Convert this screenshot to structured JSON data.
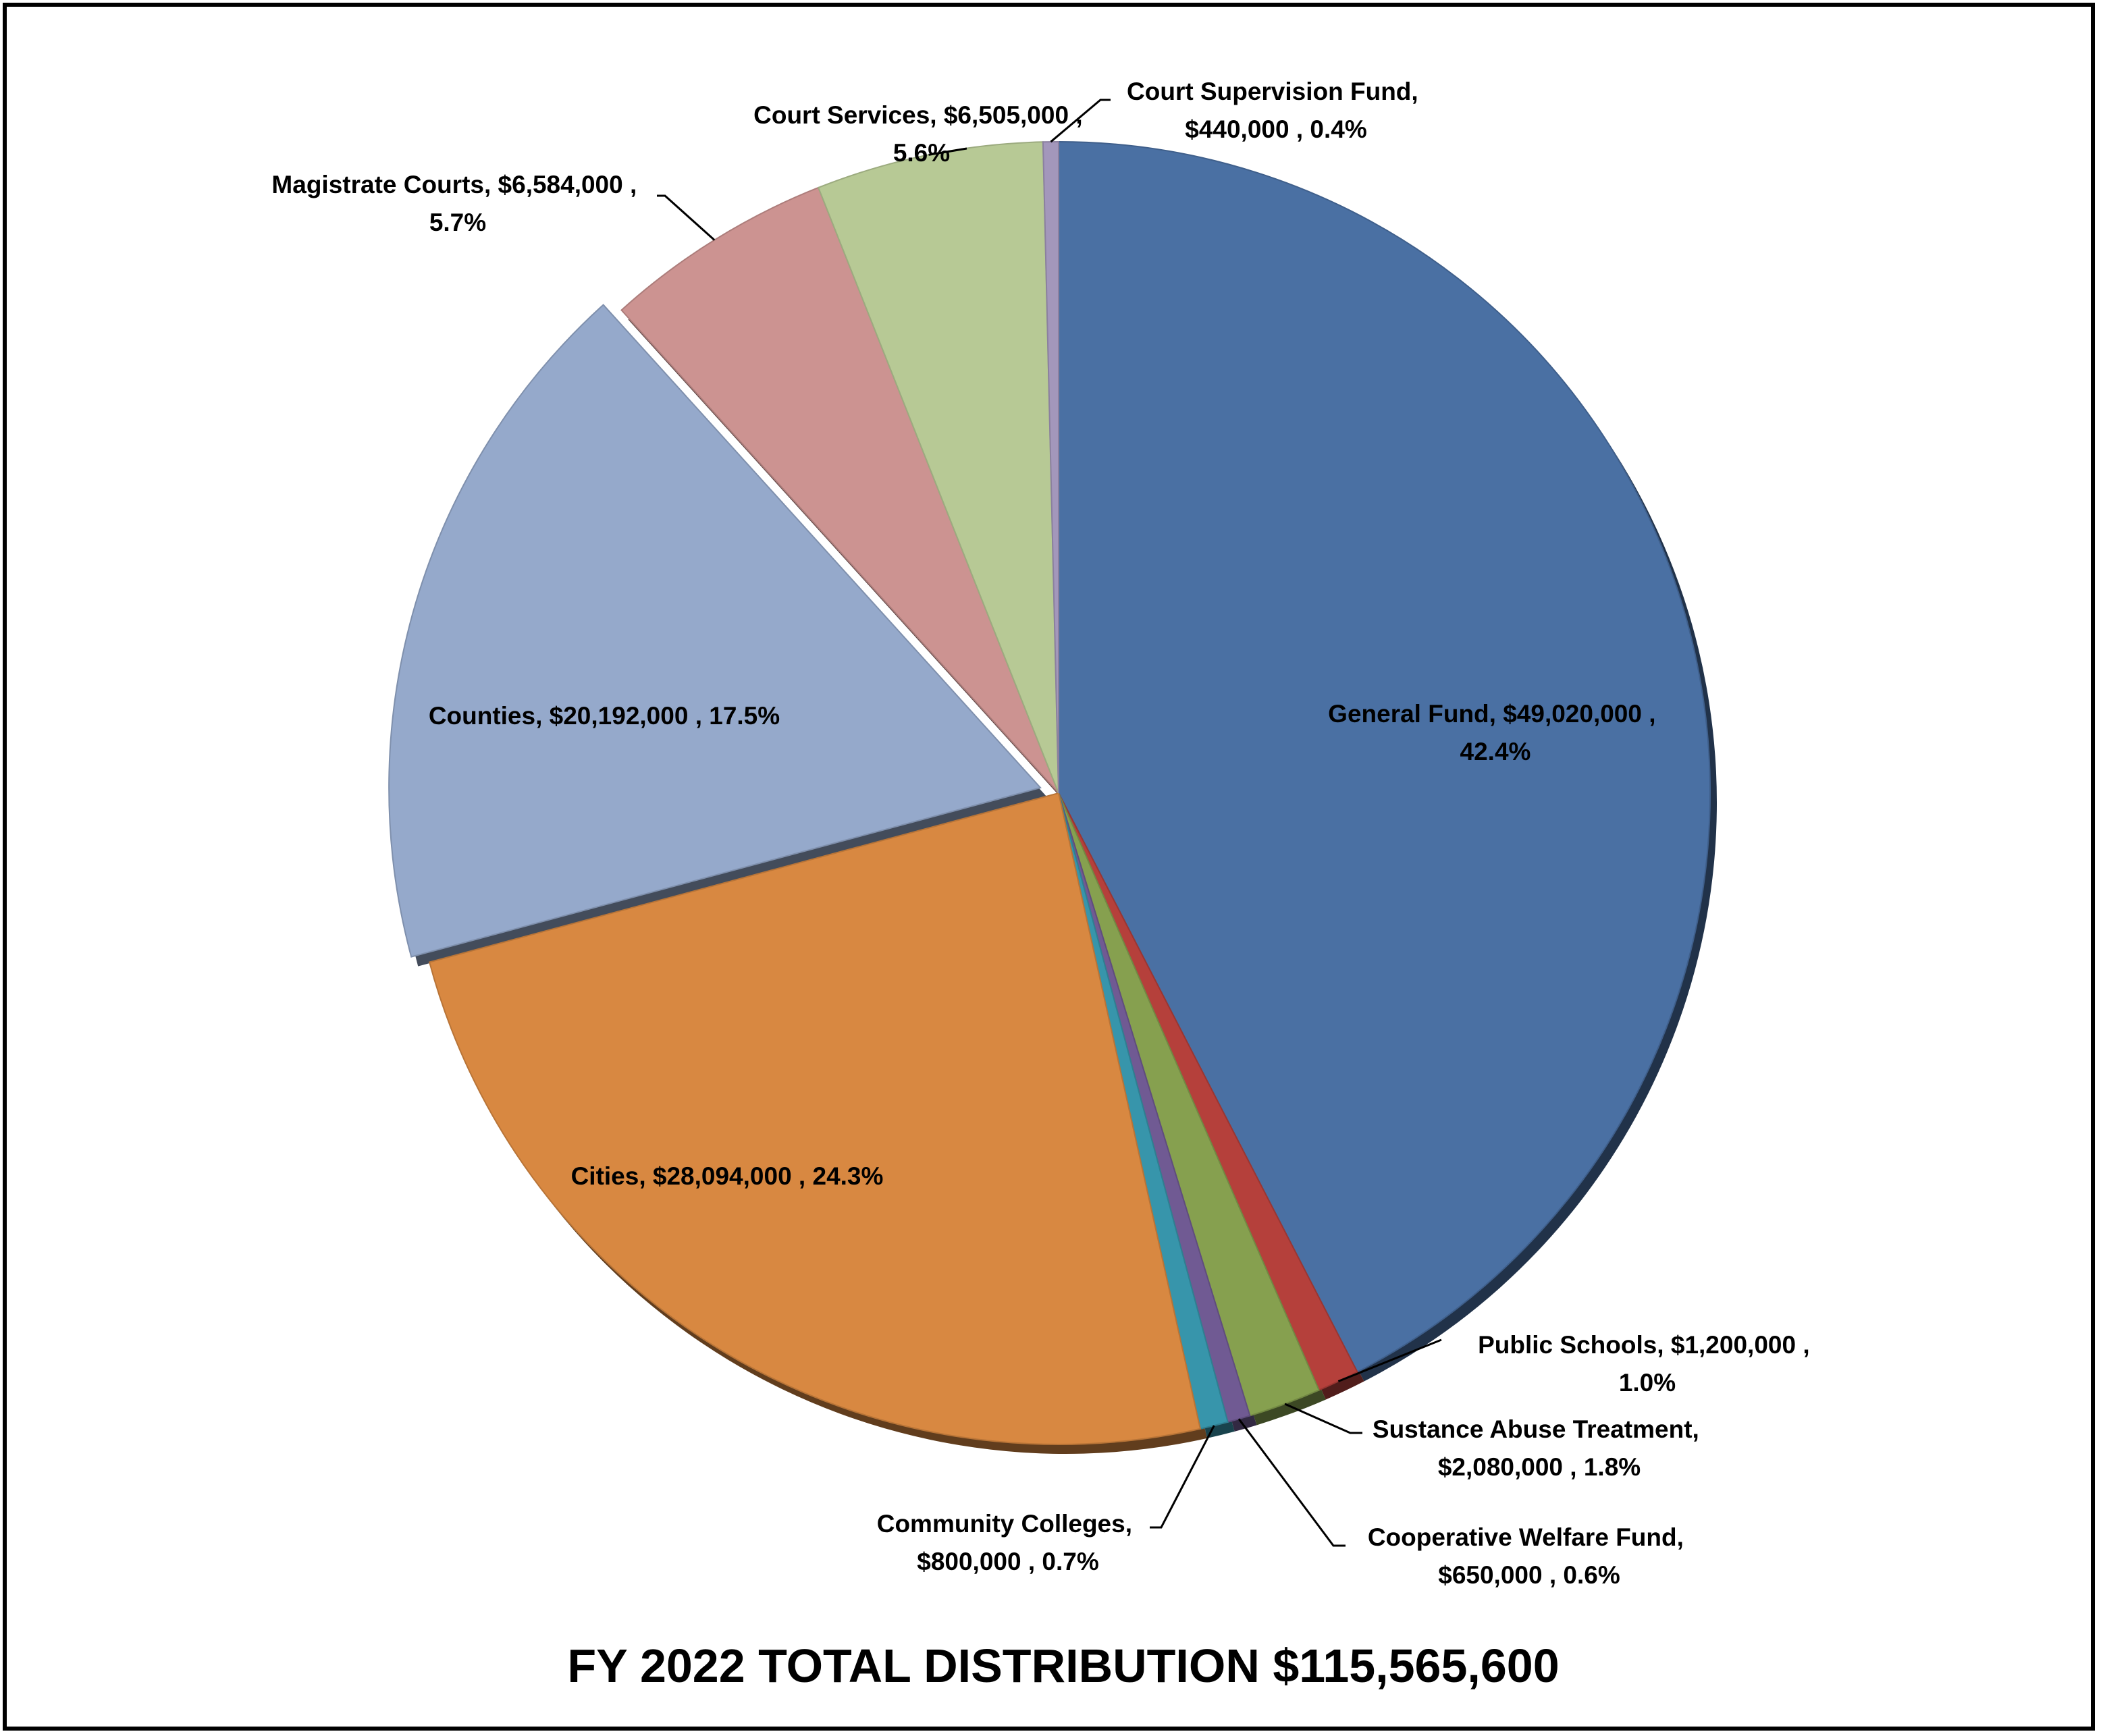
{
  "chart_data": {
    "type": "pie",
    "title": "FY 2022 TOTAL DISTRIBUTION $115,565,600",
    "slices": [
      {
        "name": "General  Fund",
        "amount": "$49,020,000",
        "value": 49020000,
        "percent": "42.4%",
        "color": "#4A70A3"
      },
      {
        "name": "Public Schools",
        "amount": "$1,200,000",
        "value": 1200000,
        "percent": "1.0%",
        "color": "#B5403B"
      },
      {
        "name": "Sustance Abuse Treatment",
        "amount": "$2,080,000",
        "value": 2080000,
        "percent": "1.8%",
        "color": "#86A04F"
      },
      {
        "name": "Cooperative Welfare Fund",
        "amount": "$650,000",
        "value": 650000,
        "percent": "0.6%",
        "color": "#705A93"
      },
      {
        "name": "Community Colleges",
        "amount": "$800,000",
        "value": 800000,
        "percent": "0.7%",
        "color": "#3795AB"
      },
      {
        "name": "Cities",
        "amount": "$28,094,000",
        "value": 28094000,
        "percent": "24.3%",
        "color": "#D88841"
      },
      {
        "name": "Counties",
        "amount": "$20,192,000",
        "value": 20192000,
        "percent": "17.5%",
        "color": "#95A9CB"
      },
      {
        "name": "Magistrate Courts",
        "amount": "$6,584,000",
        "value": 6584000,
        "percent": "5.7%",
        "color": "#CC9391"
      },
      {
        "name": "Court Services",
        "amount": "$6,505,000",
        "value": 6505000,
        "percent": "5.6%",
        "color": "#B7C995"
      },
      {
        "name": "Court Supervision Fund",
        "amount": "$440,000",
        "value": 440000,
        "percent": "0.4%",
        "color": "#A397BB"
      }
    ],
    "labels": [
      {
        "line1": "General  Fund,  $49,020,000 ,",
        "line2": "42.4%"
      },
      {
        "line1": "Public Schools,  $1,200,000 ,",
        "line2": "1.0%"
      },
      {
        "line1": "Sustance Abuse Treatment,",
        "line2": "$2,080,000 , 1.8%"
      },
      {
        "line1": "Cooperative Welfare Fund,",
        "line2": "$650,000 , 0.6%"
      },
      {
        "line1": "Community Colleges,",
        "line2": "$800,000 , 0.7%"
      },
      {
        "line1": "Cities,  $28,094,000 , 24.3%",
        "line2": ""
      },
      {
        "line1": "Counties,  $20,192,000 , 17.5%",
        "line2": ""
      },
      {
        "line1": "Magistrate Courts,  $6,584,000 ,",
        "line2": "5.7%"
      },
      {
        "line1": "Court Services,  $6,505,000 ,",
        "line2": "5.6%"
      },
      {
        "line1": "Court Supervision Fund,",
        "line2": "$440,000 , 0.4%"
      }
    ],
    "legend": "none"
  }
}
